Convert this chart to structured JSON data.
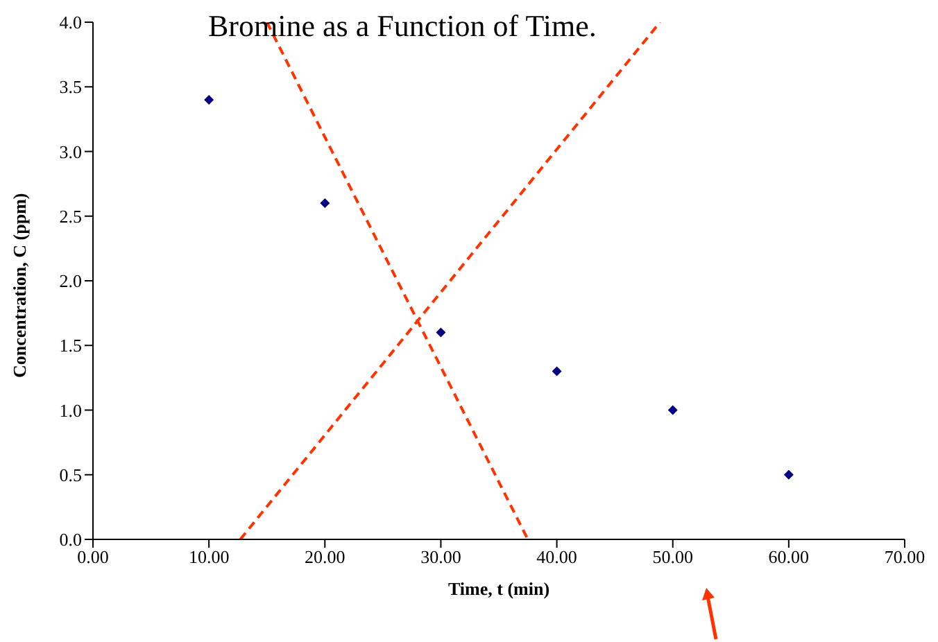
{
  "chart_data": {
    "type": "scatter",
    "title": "Bromine as a Function of Time.",
    "xlabel": "Time, t (min)",
    "ylabel": "Concentration, C (ppm)",
    "xlim": [
      0,
      70
    ],
    "ylim": [
      0,
      4.0
    ],
    "xticks": [
      {
        "value": 0,
        "label": "0.00"
      },
      {
        "value": 10,
        "label": "10.00"
      },
      {
        "value": 20,
        "label": "20.00"
      },
      {
        "value": 30,
        "label": "30.00"
      },
      {
        "value": 40,
        "label": "40.00"
      },
      {
        "value": 50,
        "label": "50.00"
      },
      {
        "value": 60,
        "label": "60.00"
      },
      {
        "value": 70,
        "label": "70.00"
      }
    ],
    "yticks": [
      {
        "value": 0,
        "label": "0.0"
      },
      0.5,
      {
        "value": 1,
        "label": "1.0"
      },
      1.5,
      {
        "value": 2,
        "label": "2.0"
      },
      2.5,
      {
        "value": 3,
        "label": "3.0"
      },
      3.5,
      {
        "value": 4,
        "label": "4.0"
      }
    ],
    "grid": false,
    "legend": false,
    "series": [
      {
        "marker": "diamond",
        "color": "#000080",
        "x": [
          10,
          20,
          30,
          40,
          50,
          60
        ],
        "values": [
          3.4,
          2.6,
          1.6,
          1.3,
          1.0,
          0.5
        ]
      },
      {
        "type": "line",
        "marker": "none",
        "color": "#ff3300",
        "line_style": "dashed",
        "x": [
          15.0,
          37.5
        ],
        "values": [
          4.0,
          0
        ]
      },
      {
        "type": "line",
        "marker": "none",
        "color": "#ff3300",
        "line_style": "dashed",
        "x": [
          12.7,
          48.9
        ],
        "values": [
          0,
          4.0
        ]
      }
    ]
  }
}
